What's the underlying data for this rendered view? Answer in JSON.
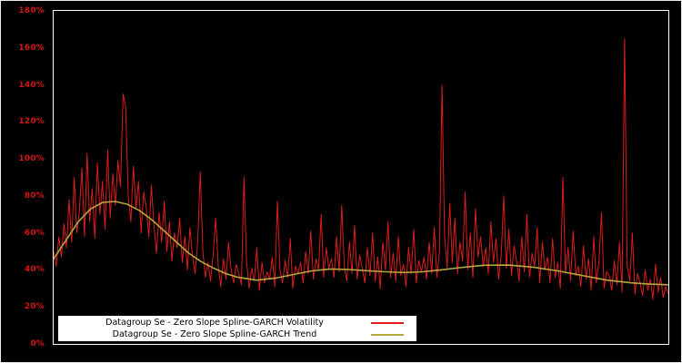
{
  "chart_data": {
    "type": "line",
    "title": "",
    "xlabel": "",
    "ylabel": "",
    "ylim": [
      0,
      180
    ],
    "y_ticks": [
      0,
      20,
      40,
      60,
      80,
      100,
      120,
      140,
      160,
      180
    ],
    "y_tick_suffix": "%",
    "grid": false,
    "background_color": "#000000",
    "frame_color": "#ffffff",
    "axis_label_color": "#d21616",
    "legend_position": "bottom-left",
    "series": [
      {
        "name": "Datagroup Se - Zero Slope Spline-GARCH Volatility",
        "color": "#dd1c1c",
        "unit": "%",
        "values": [
          50,
          42,
          58,
          47,
          65,
          52,
          78,
          55,
          90,
          60,
          72,
          95,
          58,
          103,
          66,
          84,
          57,
          98,
          70,
          88,
          62,
          105,
          68,
          92,
          75,
          99,
          85,
          135,
          128,
          80,
          66,
          96,
          73,
          88,
          60,
          82,
          74,
          58,
          86,
          64,
          49,
          71,
          55,
          77,
          50,
          66,
          45,
          60,
          52,
          68,
          44,
          58,
          40,
          63,
          47,
          38,
          55,
          93,
          50,
          36,
          44,
          34,
          48,
          68,
          42,
          31,
          46,
          35,
          55,
          40,
          33,
          43,
          38,
          32,
          90,
          45,
          30,
          41,
          34,
          52,
          29,
          44,
          33,
          39,
          35,
          47,
          31,
          77,
          40,
          33,
          45,
          36,
          57,
          30,
          42,
          38,
          44,
          33,
          50,
          38,
          61,
          35,
          46,
          40,
          70,
          36,
          52,
          41,
          46,
          36,
          58,
          39,
          75,
          42,
          34,
          55,
          38,
          64,
          35,
          48,
          41,
          33,
          52,
          37,
          60,
          34,
          47,
          30,
          55,
          40,
          66,
          36,
          49,
          34,
          58,
          37,
          43,
          31,
          52,
          38,
          62,
          33,
          45,
          39,
          47,
          35,
          55,
          38,
          63,
          36,
          50,
          140,
          58,
          41,
          76,
          44,
          68,
          38,
          55,
          45,
          82,
          40,
          60,
          36,
          73,
          47,
          58,
          42,
          52,
          38,
          66,
          44,
          57,
          35,
          48,
          80,
          41,
          62,
          37,
          53,
          45,
          34,
          58,
          39,
          70,
          36,
          49,
          42,
          63,
          33,
          55,
          40,
          47,
          33,
          57,
          36,
          44,
          30,
          90,
          38,
          52,
          34,
          61,
          37,
          42,
          31,
          53,
          35,
          46,
          29,
          58,
          33,
          44,
          71,
          30,
          39,
          37,
          29,
          45,
          32,
          55,
          28,
          165,
          42,
          34,
          60,
          27,
          38,
          33,
          26,
          40,
          29,
          35,
          24,
          43,
          28,
          36,
          25,
          31,
          27
        ]
      },
      {
        "name": "Datagroup Se - Zero Slope Spline-GARCH Trend",
        "color": "#b5a83c",
        "unit": "%",
        "points": [
          [
            0.0,
            46
          ],
          [
            0.02,
            56
          ],
          [
            0.04,
            66
          ],
          [
            0.06,
            73
          ],
          [
            0.08,
            76.5
          ],
          [
            0.1,
            77
          ],
          [
            0.12,
            75.5
          ],
          [
            0.14,
            72
          ],
          [
            0.16,
            67
          ],
          [
            0.18,
            61
          ],
          [
            0.2,
            55
          ],
          [
            0.22,
            49
          ],
          [
            0.24,
            44.5
          ],
          [
            0.26,
            41
          ],
          [
            0.28,
            38
          ],
          [
            0.3,
            36
          ],
          [
            0.33,
            34.5
          ],
          [
            0.36,
            35.5
          ],
          [
            0.39,
            37.5
          ],
          [
            0.42,
            39.5
          ],
          [
            0.45,
            40.5
          ],
          [
            0.48,
            40.2
          ],
          [
            0.51,
            39.6
          ],
          [
            0.54,
            39.0
          ],
          [
            0.57,
            38.6
          ],
          [
            0.6,
            39.0
          ],
          [
            0.63,
            40.0
          ],
          [
            0.66,
            41.2
          ],
          [
            0.7,
            42.5
          ],
          [
            0.74,
            42.6
          ],
          [
            0.78,
            41.5
          ],
          [
            0.82,
            39.5
          ],
          [
            0.86,
            37.0
          ],
          [
            0.9,
            34.5
          ],
          [
            0.94,
            33.0
          ],
          [
            0.97,
            32.3
          ],
          [
            1.0,
            32.0
          ]
        ]
      }
    ]
  },
  "legend": {
    "items": [
      {
        "label": "Datagroup Se - Zero Slope Spline-GARCH Volatility",
        "color": "#dd1c1c"
      },
      {
        "label": "Datagroup Se - Zero Slope Spline-GARCH Trend",
        "color": "#b5a83c"
      }
    ]
  }
}
